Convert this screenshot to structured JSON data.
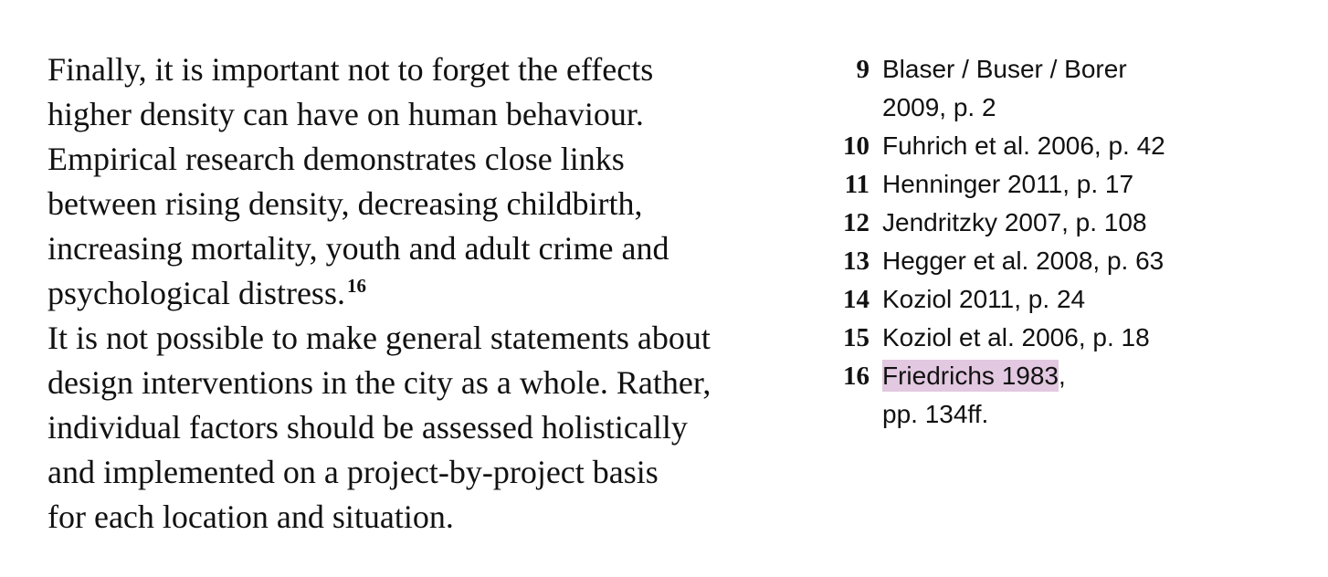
{
  "main_text": {
    "paragraph1": {
      "lines": [
        "Finally, it is important not to forget the effects",
        "higher density can have on human behaviour.",
        "Empirical research demonstrates close links",
        "between rising density, decreasing childbirth,",
        "increasing mortality, youth and adult crime and",
        "psychological distress."
      ],
      "footnote_ref": "16"
    },
    "paragraph2": {
      "lines": [
        "It is not possible to make general statements about",
        "design interventions in the city as a whole. Rather,",
        "individual factors should be assessed holistically",
        "and implemented on a project-by-project basis",
        "for each location and situation."
      ]
    }
  },
  "footnotes": [
    {
      "number": "9",
      "lines": [
        "Blaser / Buser / Borer",
        "2009, p. 2"
      ]
    },
    {
      "number": "10",
      "text": "Fuhrich et al. 2006, p. 42"
    },
    {
      "number": "11",
      "text": "Henninger 2011, p. 17"
    },
    {
      "number": "12",
      "text": "Jendritzky 2007, p. 108"
    },
    {
      "number": "13",
      "text": "Hegger et al. 2008, p. 63"
    },
    {
      "number": "14",
      "text": "Koziol 2011, p. 24"
    },
    {
      "number": "15",
      "text": "Koziol et al. 2006, p. 18"
    },
    {
      "number": "16",
      "highlighted": "Friedrichs 1983",
      "after_highlight": ",",
      "line2": "pp. 134ff."
    }
  ],
  "colors": {
    "highlight": "#e2c8e0",
    "text": "#111111"
  }
}
